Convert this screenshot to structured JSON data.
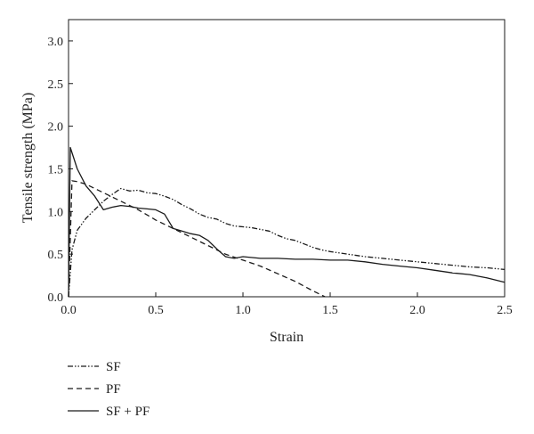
{
  "chart_data": {
    "type": "line",
    "xlabel": "Strain",
    "ylabel": "Tensile strength (MPa)",
    "xlim": [
      0,
      2.5
    ],
    "ylim": [
      0,
      3.25
    ],
    "x_ticks": [
      "0.0",
      "0.5",
      "1.0",
      "1.5",
      "2.0",
      "2.5"
    ],
    "y_ticks": [
      "0.0",
      "0.5",
      "1.0",
      "1.5",
      "2.0",
      "2.5",
      "3.0"
    ],
    "grid": false,
    "legend_position": "below",
    "series": [
      {
        "name": "SF",
        "style": "dash-dot-dot",
        "x": [
          0.0,
          0.02,
          0.05,
          0.1,
          0.15,
          0.2,
          0.25,
          0.3,
          0.35,
          0.4,
          0.45,
          0.5,
          0.55,
          0.6,
          0.65,
          0.7,
          0.75,
          0.8,
          0.85,
          0.9,
          0.95,
          1.0,
          1.05,
          1.1,
          1.15,
          1.2,
          1.25,
          1.3,
          1.35,
          1.4,
          1.45,
          1.5,
          1.6,
          1.7,
          1.8,
          1.9,
          2.0,
          2.1,
          2.2,
          2.3,
          2.4,
          2.5
        ],
        "y": [
          0.0,
          0.55,
          0.78,
          0.92,
          1.02,
          1.12,
          1.2,
          1.27,
          1.24,
          1.25,
          1.22,
          1.21,
          1.18,
          1.14,
          1.08,
          1.03,
          0.97,
          0.93,
          0.91,
          0.86,
          0.83,
          0.82,
          0.81,
          0.79,
          0.77,
          0.72,
          0.68,
          0.66,
          0.62,
          0.58,
          0.55,
          0.53,
          0.5,
          0.47,
          0.45,
          0.43,
          0.41,
          0.39,
          0.37,
          0.35,
          0.34,
          0.32
        ]
      },
      {
        "name": "PF",
        "style": "dashed",
        "x": [
          0.0,
          0.02,
          0.05,
          0.1,
          0.2,
          0.3,
          0.4,
          0.5,
          0.6,
          0.7,
          0.8,
          0.9,
          1.0,
          1.1,
          1.2,
          1.3,
          1.4,
          1.47
        ],
        "y": [
          0.0,
          1.36,
          1.35,
          1.32,
          1.22,
          1.12,
          1.02,
          0.9,
          0.8,
          0.7,
          0.6,
          0.5,
          0.43,
          0.36,
          0.27,
          0.18,
          0.07,
          0.0
        ]
      },
      {
        "name": "SF + PF",
        "style": "solid",
        "x": [
          0.0,
          0.01,
          0.05,
          0.1,
          0.15,
          0.2,
          0.25,
          0.3,
          0.35,
          0.4,
          0.45,
          0.5,
          0.55,
          0.6,
          0.65,
          0.7,
          0.75,
          0.8,
          0.85,
          0.9,
          0.95,
          1.0,
          1.1,
          1.2,
          1.3,
          1.4,
          1.5,
          1.6,
          1.7,
          1.8,
          1.9,
          2.0,
          2.1,
          2.2,
          2.3,
          2.4,
          2.5
        ],
        "y": [
          0.0,
          1.75,
          1.5,
          1.3,
          1.18,
          1.02,
          1.05,
          1.07,
          1.06,
          1.04,
          1.03,
          1.02,
          0.97,
          0.8,
          0.77,
          0.74,
          0.72,
          0.66,
          0.56,
          0.47,
          0.45,
          0.47,
          0.45,
          0.45,
          0.44,
          0.44,
          0.43,
          0.43,
          0.41,
          0.38,
          0.36,
          0.34,
          0.31,
          0.28,
          0.26,
          0.22,
          0.17
        ]
      }
    ]
  }
}
